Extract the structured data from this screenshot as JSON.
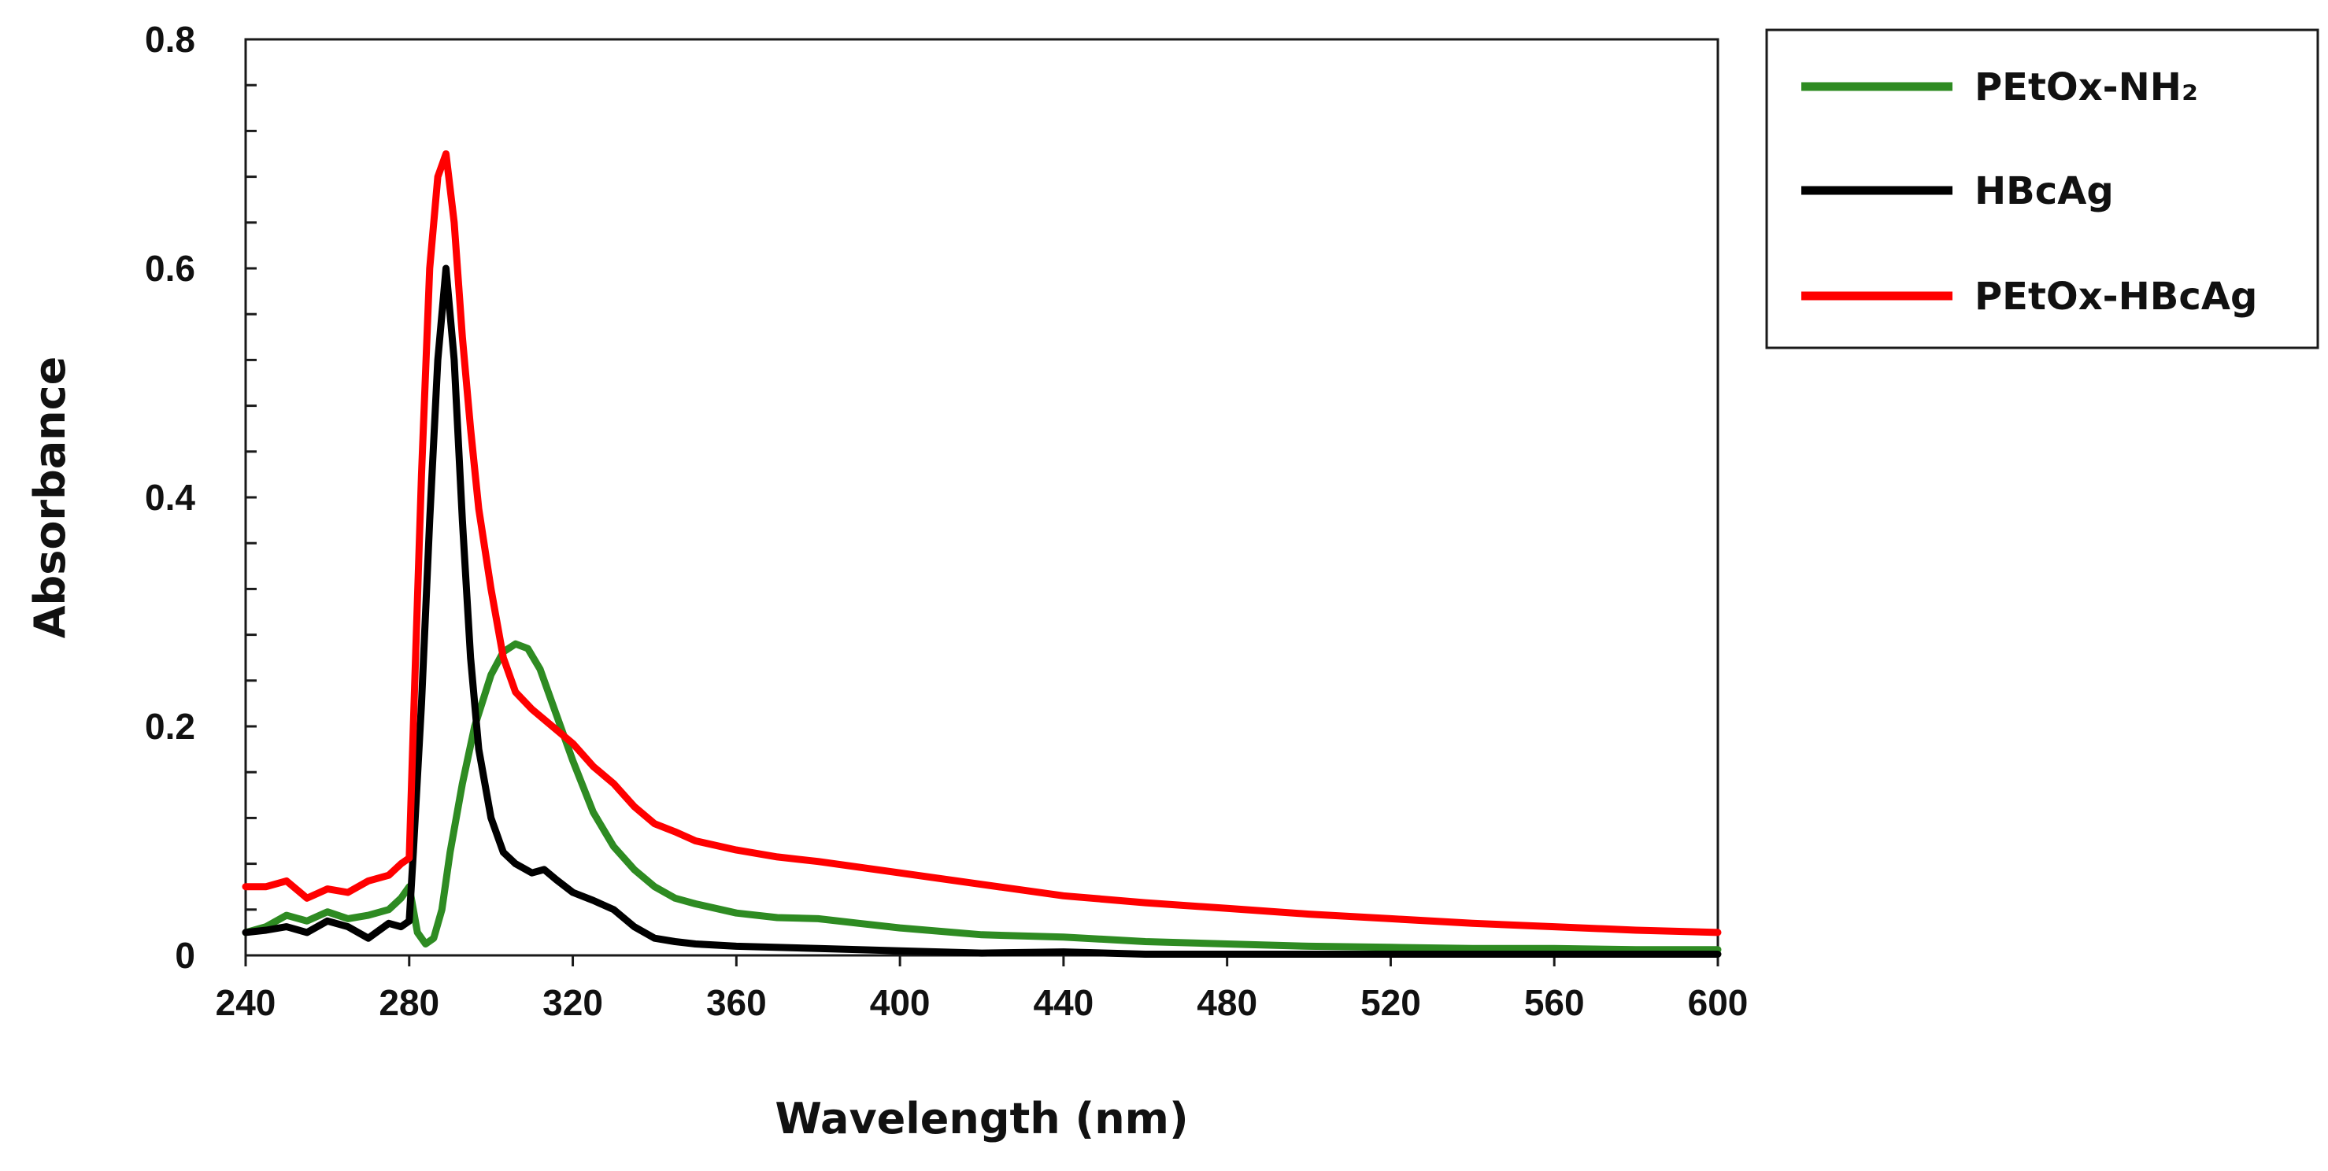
{
  "chart_data": {
    "type": "line",
    "title": "",
    "xlabel": "Wavelength (nm)",
    "ylabel": "Absorbance",
    "xlim": [
      240,
      600
    ],
    "ylim": [
      0,
      0.8
    ],
    "x_ticks": [
      "240",
      "280",
      "320",
      "360",
      "400",
      "440",
      "480",
      "520",
      "560",
      "600"
    ],
    "y_ticks": [
      "0",
      "0.2",
      "0.4",
      "0.6",
      "0.8"
    ],
    "grid": false,
    "legend_position": "right",
    "series": [
      {
        "name": "PEtOx-NH₂",
        "color": "#2e8b22",
        "x": [
          240,
          245,
          250,
          255,
          260,
          265,
          270,
          275,
          278,
          280,
          282,
          284,
          286,
          288,
          290,
          293,
          296,
          300,
          303,
          306,
          309,
          312,
          316,
          320,
          325,
          330,
          335,
          340,
          345,
          350,
          360,
          370,
          380,
          390,
          400,
          420,
          440,
          460,
          480,
          500,
          520,
          540,
          560,
          580,
          600
        ],
        "y": [
          0.02,
          0.025,
          0.035,
          0.03,
          0.038,
          0.032,
          0.035,
          0.04,
          0.05,
          0.06,
          0.02,
          0.01,
          0.015,
          0.04,
          0.09,
          0.15,
          0.2,
          0.245,
          0.265,
          0.272,
          0.268,
          0.25,
          0.21,
          0.17,
          0.125,
          0.095,
          0.075,
          0.06,
          0.05,
          0.045,
          0.037,
          0.033,
          0.032,
          0.028,
          0.024,
          0.018,
          0.016,
          0.012,
          0.01,
          0.008,
          0.007,
          0.006,
          0.006,
          0.005,
          0.005
        ]
      },
      {
        "name": "HBcAg",
        "color": "#000000",
        "x": [
          240,
          245,
          250,
          255,
          260,
          265,
          270,
          275,
          278,
          280,
          281,
          283,
          285,
          287,
          289,
          291,
          293,
          295,
          297,
          300,
          303,
          306,
          310,
          313,
          316,
          320,
          325,
          330,
          335,
          340,
          345,
          350,
          360,
          380,
          400,
          420,
          440,
          460,
          480,
          500,
          520,
          540,
          560,
          580,
          600
        ],
        "y": [
          0.02,
          0.022,
          0.025,
          0.02,
          0.03,
          0.025,
          0.015,
          0.028,
          0.025,
          0.03,
          0.09,
          0.22,
          0.38,
          0.52,
          0.6,
          0.52,
          0.38,
          0.26,
          0.18,
          0.12,
          0.09,
          0.08,
          0.072,
          0.075,
          0.066,
          0.055,
          0.048,
          0.04,
          0.025,
          0.015,
          0.012,
          0.01,
          0.008,
          0.006,
          0.004,
          0.002,
          0.003,
          0.001,
          0.001,
          0.001,
          0.001,
          0.001,
          0.001,
          0.001,
          0.001
        ]
      },
      {
        "name": "PEtOx-HBcAg",
        "color": "#ff0000",
        "x": [
          240,
          245,
          250,
          255,
          260,
          265,
          270,
          275,
          278,
          280,
          281,
          283,
          285,
          287,
          289,
          291,
          293,
          295,
          297,
          300,
          303,
          306,
          310,
          315,
          320,
          325,
          330,
          335,
          340,
          345,
          350,
          360,
          370,
          380,
          400,
          420,
          440,
          460,
          480,
          500,
          520,
          540,
          560,
          580,
          600
        ],
        "y": [
          0.06,
          0.06,
          0.065,
          0.05,
          0.058,
          0.055,
          0.065,
          0.07,
          0.08,
          0.085,
          0.2,
          0.42,
          0.6,
          0.68,
          0.7,
          0.64,
          0.54,
          0.46,
          0.39,
          0.32,
          0.26,
          0.23,
          0.215,
          0.2,
          0.185,
          0.165,
          0.15,
          0.13,
          0.115,
          0.108,
          0.1,
          0.092,
          0.086,
          0.082,
          0.072,
          0.062,
          0.052,
          0.046,
          0.041,
          0.036,
          0.032,
          0.028,
          0.025,
          0.022,
          0.02
        ]
      }
    ]
  }
}
